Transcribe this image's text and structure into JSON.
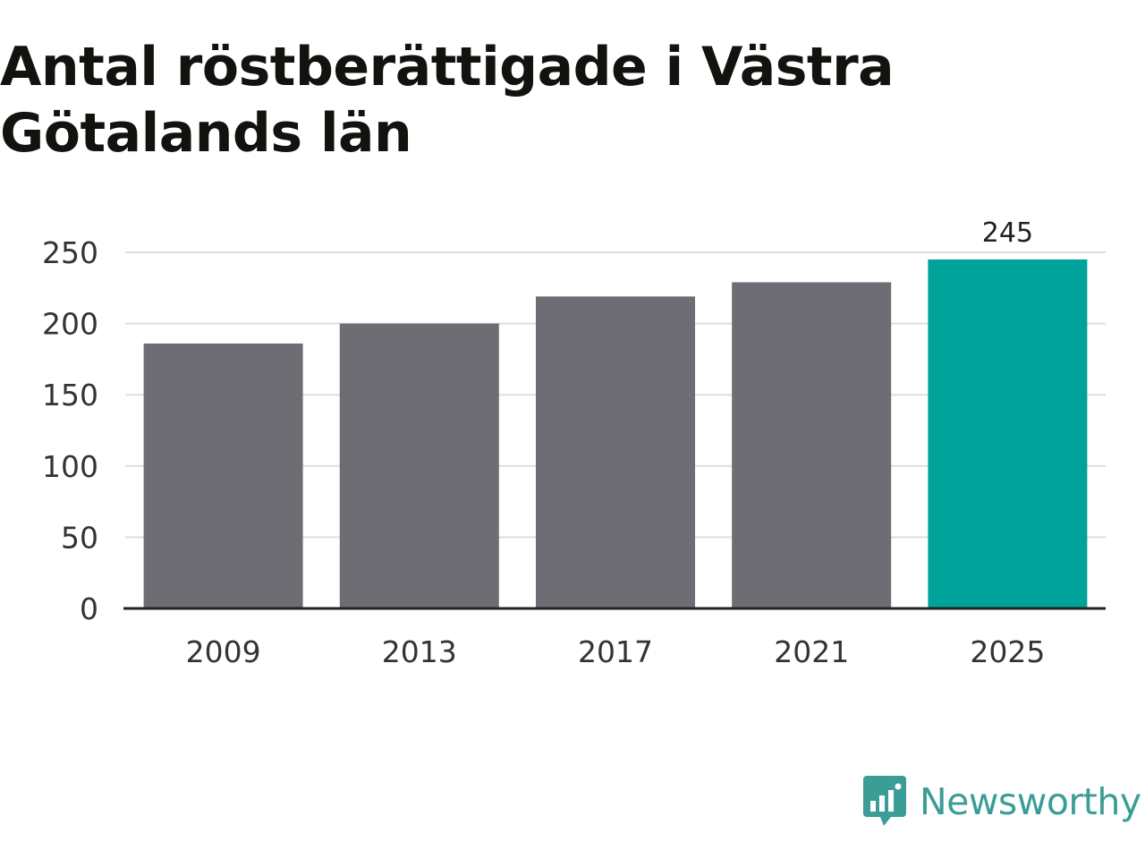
{
  "title": "Antal röstberättigade i Västra Götalands län",
  "brand": {
    "name": "Newsworthy",
    "icon": "newsworthy-logo-icon",
    "color": "#3a9d96"
  },
  "chart_data": {
    "type": "bar",
    "categories": [
      "2009",
      "2013",
      "2017",
      "2021",
      "2025"
    ],
    "values": [
      186,
      200,
      219,
      229,
      245
    ],
    "ylim": [
      0,
      250
    ],
    "yticks": [
      0,
      50,
      100,
      150,
      200,
      250
    ],
    "data_labels": [
      null,
      null,
      null,
      null,
      "245"
    ],
    "highlight_index": 4,
    "colors": {
      "bar": "#6e6d73",
      "highlight": "#00a39a",
      "grid": "#dddddd",
      "axis": "#222222"
    },
    "grid": true,
    "legend": "none",
    "xlabel": "",
    "ylabel": ""
  }
}
